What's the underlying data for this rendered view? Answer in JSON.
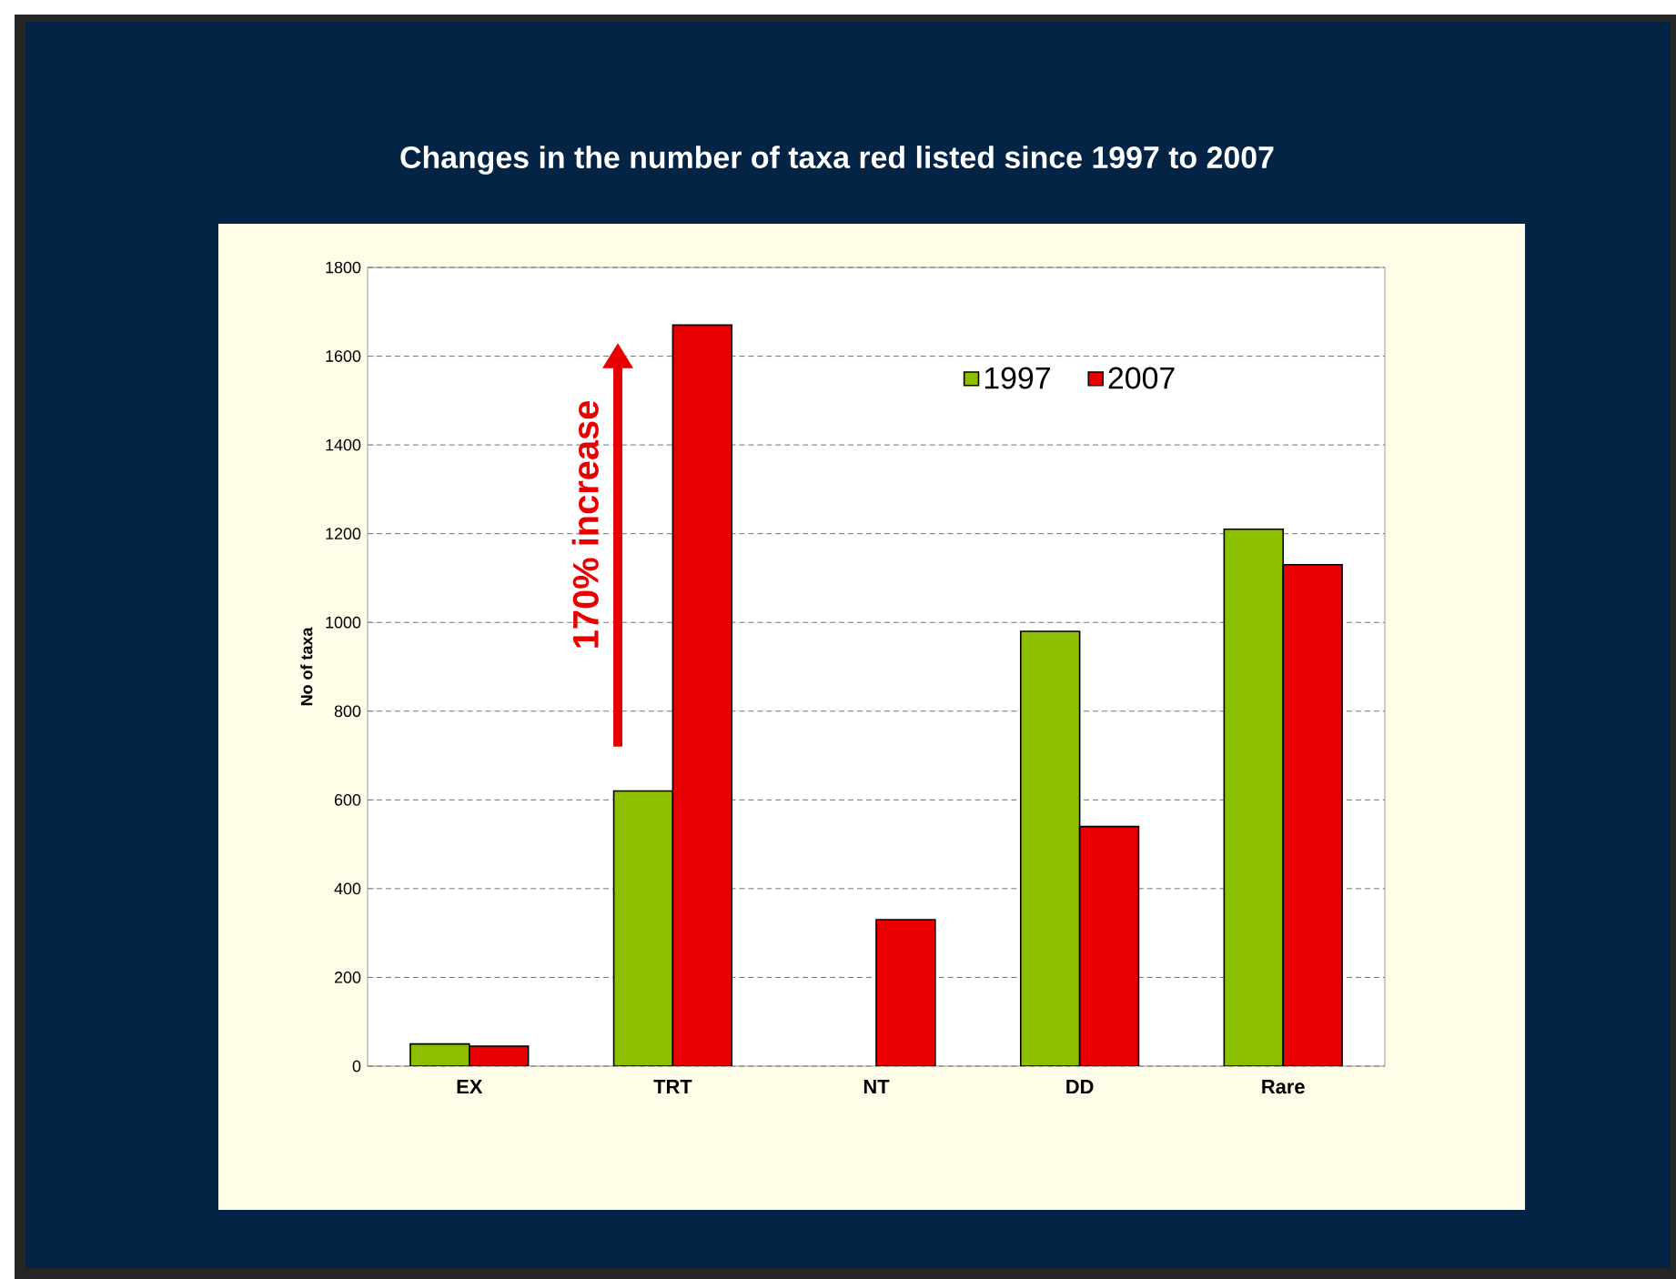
{
  "chart_data": {
    "type": "bar",
    "title": "Changes in the number of taxa red listed since 1997 to 2007",
    "ylabel": "No of taxa",
    "categories": [
      "EX",
      "TRT",
      "NT",
      "DD",
      "Rare"
    ],
    "series": [
      {
        "name": "1997",
        "color": "#8cbf00",
        "values": [
          50,
          620,
          null,
          980,
          1210
        ]
      },
      {
        "name": "2007",
        "color": "#e80000",
        "values": [
          45,
          1670,
          330,
          540,
          1130
        ]
      }
    ],
    "ylim": [
      0,
      1800
    ],
    "yticks": [
      0,
      200,
      400,
      600,
      800,
      1000,
      1200,
      1400,
      1600,
      1800
    ],
    "grid": "y",
    "legend": "top right",
    "annotations": [
      "170% increase"
    ]
  }
}
